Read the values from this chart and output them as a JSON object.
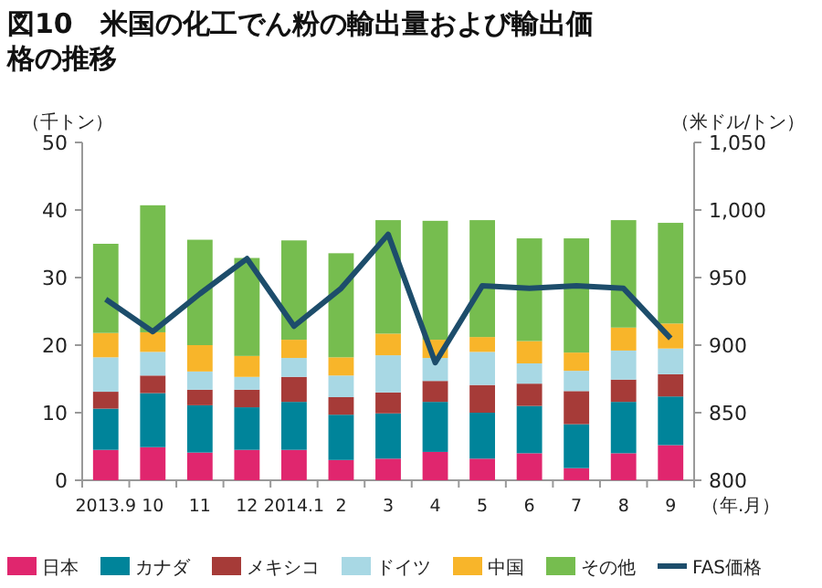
{
  "chart_data": {
    "type": "bar",
    "stacked": true,
    "title": "図10　米国の化工でん粉の輸出量および輸出価格の推移",
    "ylabel": "（千トン）",
    "y2label": "（米ドル/トン）",
    "xlabel": "（年.月）",
    "categories": [
      "2013.9",
      "10",
      "11",
      "12",
      "2014.1",
      "2",
      "3",
      "4",
      "5",
      "6",
      "7",
      "8",
      "9"
    ],
    "ylim": [
      0,
      50
    ],
    "yticks": [
      0,
      10,
      20,
      30,
      40,
      50
    ],
    "y2lim": [
      800,
      1050
    ],
    "y2ticks": [
      800,
      850,
      900,
      950,
      {
        "value": 1000,
        "label": "1,000"
      },
      {
        "value": 1050,
        "label": "1,050"
      }
    ],
    "legend": "bottom",
    "series": [
      {
        "name": "日本",
        "color": "#e0266e",
        "values": [
          4.5,
          4.9,
          4.1,
          4.5,
          4.5,
          3.0,
          3.2,
          4.2,
          3.2,
          4.0,
          1.8,
          4.0,
          5.2
        ]
      },
      {
        "name": "カナダ",
        "color": "#00849a",
        "values": [
          6.1,
          8.0,
          7.0,
          6.3,
          7.1,
          6.7,
          6.7,
          7.4,
          6.8,
          7.0,
          6.5,
          7.6,
          7.2
        ]
      },
      {
        "name": "メキシコ",
        "color": "#a63b38",
        "values": [
          2.5,
          2.6,
          2.3,
          2.6,
          3.7,
          2.6,
          3.1,
          3.1,
          4.1,
          3.3,
          4.9,
          3.3,
          3.3
        ]
      },
      {
        "name": "ドイツ",
        "color": "#a8d8e4",
        "values": [
          5.1,
          3.5,
          2.7,
          1.9,
          2.8,
          3.2,
          5.5,
          3.4,
          4.9,
          3.0,
          3.0,
          4.3,
          3.8
        ]
      },
      {
        "name": "中国",
        "color": "#f8b52a",
        "values": [
          3.6,
          2.9,
          3.9,
          3.1,
          2.7,
          2.7,
          3.2,
          2.7,
          2.2,
          3.3,
          2.7,
          3.4,
          3.7
        ]
      },
      {
        "name": "その他",
        "color": "#76bd4f",
        "values": [
          13.2,
          18.8,
          15.6,
          14.5,
          14.7,
          15.4,
          16.8,
          17.6,
          17.3,
          15.2,
          16.9,
          15.9,
          14.9
        ]
      },
      {
        "name": "FAS価格",
        "type": "line",
        "axis": "y2",
        "color": "#1d4d6b",
        "values": [
          934,
          910,
          938,
          964,
          914,
          942,
          982,
          887,
          944,
          942,
          944,
          942,
          905
        ]
      }
    ]
  }
}
